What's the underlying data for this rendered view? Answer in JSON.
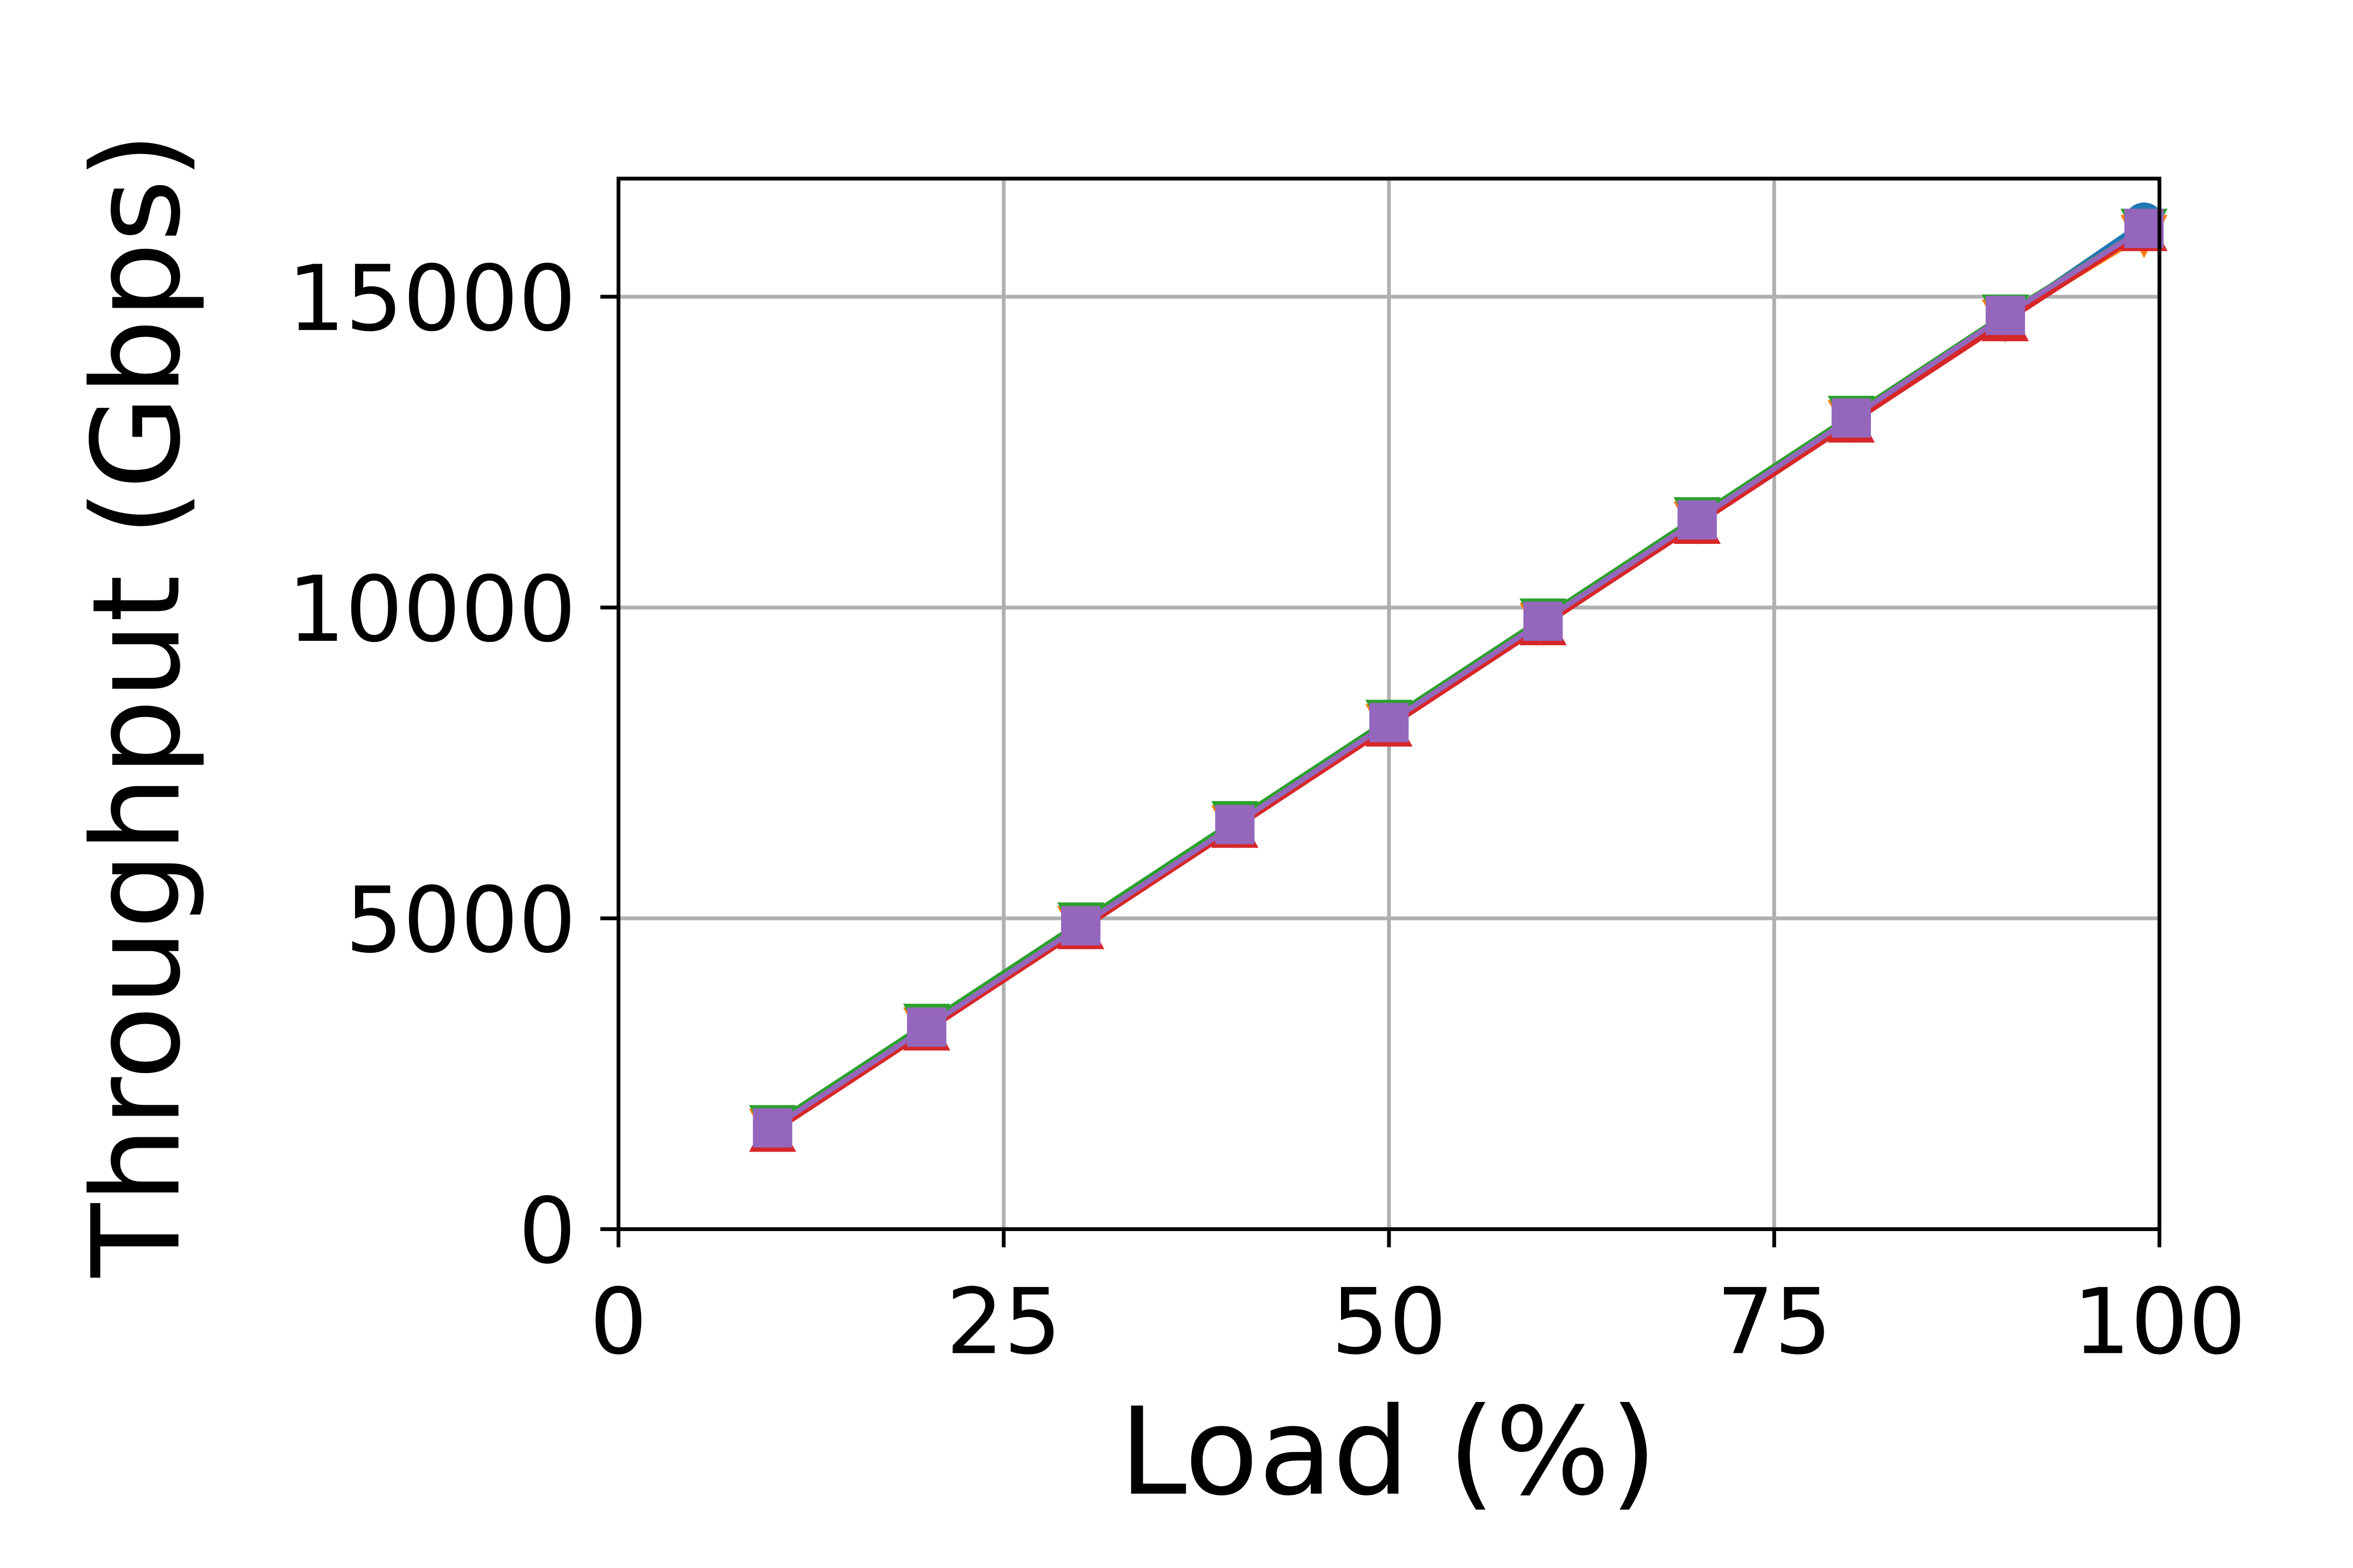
{
  "chart_data": {
    "type": "line",
    "xlabel": "Load (%)",
    "ylabel": "Throughput (Gbps)",
    "x": [
      10,
      20,
      30,
      40,
      50,
      60,
      70,
      80,
      90,
      99
    ],
    "series": [
      {
        "color": "#1f77b4",
        "marker": "circle",
        "values": [
          1630,
          3260,
          4890,
          6520,
          8150,
          9780,
          11410,
          13040,
          14670,
          16200
        ]
      },
      {
        "color": "#ff7f0e",
        "marker": "triangle-down",
        "values": [
          1620,
          3250,
          4880,
          6500,
          8130,
          9760,
          11390,
          13020,
          14640,
          16000
        ]
      },
      {
        "color": "#2ca02c",
        "marker": "triangle-down",
        "values": [
          1680,
          3310,
          4940,
          6570,
          8200,
          9830,
          11460,
          13090,
          14720,
          16100
        ]
      },
      {
        "color": "#d62728",
        "marker": "triangle-up",
        "values": [
          1560,
          3190,
          4820,
          6450,
          8080,
          9710,
          11340,
          12970,
          14600,
          16050
        ]
      },
      {
        "color": "#9467bd",
        "marker": "square",
        "values": [
          1630,
          3250,
          4880,
          6510,
          8150,
          9780,
          11410,
          13050,
          14700,
          16100
        ]
      }
    ],
    "xlim": [
      0,
      100
    ],
    "xticks": [
      0,
      25,
      50,
      75,
      100
    ],
    "ylim": [
      0,
      16900
    ],
    "yticks": [
      0,
      5000,
      10000,
      15000
    ],
    "grid": true
  }
}
